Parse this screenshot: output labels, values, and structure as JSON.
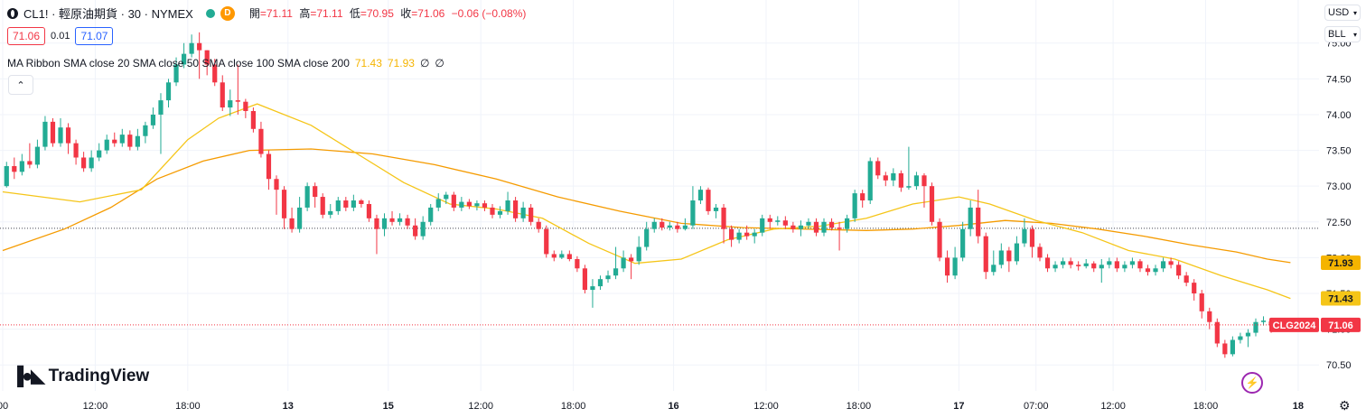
{
  "header": {
    "symbol": "CL1! · 輕原油期貨 · 30 · NYMEX",
    "badge": "D",
    "ohlc": [
      {
        "k": "開",
        "v": "=71.11"
      },
      {
        "k": "高",
        "v": "=71.11"
      },
      {
        "k": "低",
        "v": "=70.95"
      },
      {
        "k": "收",
        "v": "=71.06"
      },
      {
        "k": "",
        "v": "−0.06 (−0.08%)"
      }
    ]
  },
  "quote": {
    "sell": "71.06",
    "spread": "0.01",
    "buy": "71.07"
  },
  "indicator": {
    "label": "MA Ribbon SMA close 20 SMA close 50 SMA close 100 SMA close 200",
    "v1": "71.43",
    "v2": "71.93",
    "v3": "∅",
    "v4": "∅"
  },
  "brand": "TradingView",
  "axis_units": {
    "currency": "USD",
    "unit": "BLL"
  },
  "colors": {
    "up": "#22ab94",
    "down": "#f23645",
    "ma20": "#f5c518",
    "ma50": "#f59b00",
    "purple": "#9c27b0"
  },
  "chart_data": {
    "type": "candlestick",
    "symbol_tag": "CLG2024",
    "y_ticks": [
      "75.00",
      "74.50",
      "74.00",
      "73.50",
      "73.00",
      "72.50",
      "72.00",
      "71.50",
      "71.00",
      "70.50"
    ],
    "y_tick_values": [
      75.0,
      74.5,
      74.0,
      73.5,
      73.0,
      72.5,
      72.0,
      71.5,
      71.0,
      70.5
    ],
    "ylim": [
      70.2,
      75.35
    ],
    "x_ticks": [
      {
        "label": "00",
        "i": 0
      },
      {
        "label": "12:00",
        "i": 12
      },
      {
        "label": "18:00",
        "i": 24
      },
      {
        "label": "13",
        "i": 37
      },
      {
        "label": "15",
        "i": 50
      },
      {
        "label": "12:00",
        "i": 62
      },
      {
        "label": "18:00",
        "i": 74
      },
      {
        "label": "16",
        "i": 87
      },
      {
        "label": "12:00",
        "i": 99
      },
      {
        "label": "18:00",
        "i": 111
      },
      {
        "label": "17",
        "i": 124
      },
      {
        "label": "07:00",
        "i": 134
      },
      {
        "label": "12:00",
        "i": 144
      },
      {
        "label": "18:00",
        "i": 156
      },
      {
        "label": "18",
        "i": 168
      }
    ],
    "n_slots": 170,
    "last_price": "71.06",
    "last_value": 71.06,
    "ma20_label": "71.43",
    "ma20_value": 71.43,
    "ma50_label": "71.93",
    "ma50_value": 71.93,
    "ref_value": 72.41,
    "candles": [
      [
        73.0,
        73.28,
        73.34,
        72.98
      ],
      [
        73.28,
        73.2,
        73.4,
        73.1
      ],
      [
        73.2,
        73.35,
        73.45,
        73.15
      ],
      [
        73.35,
        73.3,
        73.6,
        73.25
      ],
      [
        73.3,
        73.55,
        73.65,
        73.25
      ],
      [
        73.55,
        73.9,
        73.98,
        73.5
      ],
      [
        73.9,
        73.6,
        73.95,
        73.55
      ],
      [
        73.6,
        73.82,
        73.95,
        73.55
      ],
      [
        73.82,
        73.6,
        73.88,
        73.45
      ],
      [
        73.6,
        73.4,
        73.65,
        73.3
      ],
      [
        73.4,
        73.25,
        73.48,
        73.2
      ],
      [
        73.25,
        73.4,
        73.5,
        73.2
      ],
      [
        73.4,
        73.5,
        73.6,
        73.35
      ],
      [
        73.5,
        73.65,
        73.72,
        73.45
      ],
      [
        73.65,
        73.6,
        73.75,
        73.55
      ],
      [
        73.6,
        73.72,
        73.8,
        73.55
      ],
      [
        73.72,
        73.55,
        73.78,
        73.5
      ],
      [
        73.55,
        73.7,
        73.8,
        73.5
      ],
      [
        73.7,
        73.85,
        73.9,
        73.6
      ],
      [
        73.85,
        74.0,
        74.1,
        73.8
      ],
      [
        74.0,
        74.2,
        74.3,
        73.45
      ],
      [
        74.2,
        74.45,
        74.5,
        74.1
      ],
      [
        74.45,
        74.7,
        74.8,
        74.4
      ],
      [
        74.7,
        74.85,
        75.0,
        74.65
      ],
      [
        74.85,
        75.0,
        75.12,
        74.8
      ],
      [
        75.0,
        74.9,
        75.15,
        74.5
      ],
      [
        74.9,
        74.7,
        74.9,
        74.55
      ],
      [
        74.7,
        74.45,
        74.78,
        74.4
      ],
      [
        74.45,
        74.1,
        74.55,
        74.05
      ],
      [
        74.1,
        74.2,
        74.35,
        73.98
      ],
      [
        74.2,
        74.18,
        74.7,
        74.0
      ],
      [
        74.18,
        74.05,
        74.22,
        73.95
      ],
      [
        74.05,
        73.8,
        74.1,
        73.75
      ],
      [
        73.8,
        73.45,
        73.9,
        73.4
      ],
      [
        73.45,
        73.1,
        73.5,
        72.95
      ],
      [
        73.1,
        72.95,
        73.15,
        72.6
      ],
      [
        72.95,
        72.55,
        73.0,
        72.4
      ],
      [
        72.55,
        72.4,
        72.7,
        72.35
      ],
      [
        72.4,
        72.7,
        72.85,
        72.35
      ],
      [
        72.7,
        73.0,
        73.05,
        72.65
      ],
      [
        73.0,
        72.85,
        73.05,
        72.7
      ],
      [
        72.85,
        72.6,
        72.9,
        72.55
      ],
      [
        72.6,
        72.65,
        72.75,
        72.55
      ],
      [
        72.65,
        72.8,
        72.85,
        72.6
      ],
      [
        72.8,
        72.7,
        72.85,
        72.65
      ],
      [
        72.7,
        72.8,
        72.88,
        72.65
      ],
      [
        72.8,
        72.75,
        72.82,
        72.7
      ],
      [
        72.75,
        72.55,
        72.8,
        72.5
      ],
      [
        72.55,
        72.4,
        72.6,
        72.05
      ],
      [
        72.4,
        72.55,
        72.62,
        72.3
      ],
      [
        72.55,
        72.5,
        72.65,
        72.45
      ],
      [
        72.5,
        72.55,
        72.62,
        72.45
      ],
      [
        72.55,
        72.45,
        72.6,
        72.4
      ],
      [
        72.45,
        72.3,
        72.55,
        72.25
      ],
      [
        72.3,
        72.5,
        72.58,
        72.25
      ],
      [
        72.5,
        72.7,
        72.75,
        72.45
      ],
      [
        72.7,
        72.82,
        72.9,
        72.65
      ],
      [
        72.82,
        72.88,
        72.92,
        72.75
      ],
      [
        72.88,
        72.7,
        72.92,
        72.65
      ],
      [
        72.7,
        72.78,
        72.85,
        72.65
      ],
      [
        72.78,
        72.72,
        72.82,
        72.68
      ],
      [
        72.72,
        72.76,
        72.8,
        72.66
      ],
      [
        72.76,
        72.7,
        72.8,
        72.65
      ],
      [
        72.7,
        72.6,
        72.75,
        72.55
      ],
      [
        72.6,
        72.65,
        72.72,
        72.55
      ],
      [
        72.65,
        72.8,
        72.92,
        72.6
      ],
      [
        72.8,
        72.55,
        72.85,
        72.5
      ],
      [
        72.55,
        72.7,
        72.78,
        72.5
      ],
      [
        72.7,
        72.5,
        72.75,
        72.45
      ],
      [
        72.5,
        72.4,
        72.55,
        72.35
      ],
      [
        72.4,
        72.05,
        72.45,
        72.0
      ],
      [
        72.05,
        72.0,
        72.1,
        71.95
      ],
      [
        72.0,
        72.05,
        72.1,
        71.98
      ],
      [
        72.05,
        71.98,
        72.1,
        71.95
      ],
      [
        71.98,
        71.85,
        72.02,
        71.8
      ],
      [
        71.85,
        71.55,
        71.9,
        71.5
      ],
      [
        71.55,
        71.6,
        71.7,
        71.3
      ],
      [
        71.6,
        71.7,
        71.75,
        71.55
      ],
      [
        71.7,
        71.75,
        71.82,
        71.65
      ],
      [
        71.75,
        71.85,
        72.15,
        71.7
      ],
      [
        71.85,
        72.0,
        72.1,
        71.8
      ],
      [
        72.0,
        71.95,
        72.05,
        71.7
      ],
      [
        71.95,
        72.15,
        72.3,
        71.9
      ],
      [
        72.15,
        72.4,
        72.5,
        72.1
      ],
      [
        72.4,
        72.5,
        72.55,
        72.35
      ],
      [
        72.5,
        72.42,
        72.55,
        72.38
      ],
      [
        72.42,
        72.45,
        72.5,
        72.38
      ],
      [
        72.45,
        72.4,
        72.5,
        72.35
      ],
      [
        72.4,
        72.45,
        72.55,
        72.38
      ],
      [
        72.45,
        72.8,
        73.0,
        72.4
      ],
      [
        72.8,
        72.95,
        73.0,
        72.75
      ],
      [
        72.95,
        72.65,
        72.98,
        72.6
      ],
      [
        72.65,
        72.7,
        72.75,
        72.55
      ],
      [
        72.7,
        72.4,
        72.75,
        72.2
      ],
      [
        72.4,
        72.25,
        72.45,
        72.15
      ],
      [
        72.25,
        72.35,
        72.4,
        72.2
      ],
      [
        72.35,
        72.3,
        72.45,
        72.25
      ],
      [
        72.3,
        72.35,
        72.4,
        72.2
      ],
      [
        72.35,
        72.55,
        72.6,
        72.3
      ],
      [
        72.55,
        72.5,
        72.6,
        72.4
      ],
      [
        72.5,
        72.52,
        72.58,
        72.45
      ],
      [
        72.52,
        72.45,
        72.58,
        72.4
      ],
      [
        72.45,
        72.4,
        72.5,
        72.35
      ],
      [
        72.4,
        72.45,
        72.52,
        72.3
      ],
      [
        72.45,
        72.5,
        72.55,
        72.4
      ],
      [
        72.5,
        72.35,
        72.55,
        72.3
      ],
      [
        72.35,
        72.5,
        72.55,
        72.3
      ],
      [
        72.5,
        72.42,
        72.55,
        72.38
      ],
      [
        72.42,
        72.4,
        72.5,
        72.1
      ],
      [
        72.4,
        72.55,
        72.6,
        72.35
      ],
      [
        72.55,
        72.9,
        72.95,
        72.5
      ],
      [
        72.9,
        72.8,
        72.95,
        72.7
      ],
      [
        72.8,
        73.35,
        73.4,
        72.75
      ],
      [
        73.35,
        73.15,
        73.4,
        73.1
      ],
      [
        73.15,
        73.08,
        73.2,
        73.0
      ],
      [
        73.08,
        73.18,
        73.25,
        73.0
      ],
      [
        73.18,
        72.98,
        73.22,
        72.92
      ],
      [
        72.98,
        73.0,
        73.55,
        72.95
      ],
      [
        73.0,
        73.15,
        73.2,
        72.95
      ],
      [
        73.15,
        73.0,
        73.18,
        72.7
      ],
      [
        73.0,
        72.5,
        73.05,
        72.45
      ],
      [
        72.5,
        72.0,
        72.55,
        71.95
      ],
      [
        72.0,
        71.75,
        72.1,
        71.65
      ],
      [
        71.75,
        72.0,
        72.15,
        71.7
      ],
      [
        72.0,
        72.4,
        72.5,
        71.95
      ],
      [
        72.4,
        72.7,
        72.8,
        72.3
      ],
      [
        72.7,
        72.3,
        72.95,
        72.2
      ],
      [
        72.3,
        71.8,
        72.35,
        71.7
      ],
      [
        71.8,
        71.9,
        72.1,
        71.75
      ],
      [
        71.9,
        72.1,
        72.2,
        71.85
      ],
      [
        72.1,
        71.95,
        72.15,
        71.8
      ],
      [
        71.95,
        72.2,
        72.3,
        71.9
      ],
      [
        72.2,
        72.4,
        72.55,
        72.15
      ],
      [
        72.4,
        72.15,
        72.45,
        72.0
      ],
      [
        72.15,
        72.0,
        72.2,
        71.95
      ],
      [
        72.0,
        71.85,
        72.05,
        71.8
      ],
      [
        71.85,
        71.9,
        71.95,
        71.8
      ],
      [
        71.9,
        71.95,
        72.0,
        71.85
      ],
      [
        71.95,
        71.9,
        72.0,
        71.85
      ],
      [
        71.9,
        71.88,
        71.95,
        71.82
      ],
      [
        71.88,
        71.92,
        71.98,
        71.85
      ],
      [
        71.92,
        71.85,
        71.95,
        71.8
      ],
      [
        71.85,
        71.9,
        71.98,
        71.65
      ],
      [
        71.9,
        71.95,
        72.0,
        71.85
      ],
      [
        71.95,
        71.85,
        72.0,
        71.8
      ],
      [
        71.85,
        71.9,
        71.95,
        71.8
      ],
      [
        71.9,
        71.95,
        72.0,
        71.85
      ],
      [
        71.95,
        71.85,
        71.98,
        71.8
      ],
      [
        71.85,
        71.8,
        71.9,
        71.75
      ],
      [
        71.8,
        71.85,
        71.9,
        71.75
      ],
      [
        71.85,
        71.95,
        72.0,
        71.8
      ],
      [
        71.95,
        71.9,
        72.0,
        71.85
      ],
      [
        71.9,
        71.75,
        71.95,
        71.7
      ],
      [
        71.75,
        71.65,
        71.8,
        71.6
      ],
      [
        71.65,
        71.5,
        71.7,
        71.4
      ],
      [
        71.5,
        71.25,
        71.55,
        71.15
      ],
      [
        71.25,
        71.1,
        71.3,
        71.0
      ],
      [
        71.1,
        70.8,
        71.15,
        70.75
      ],
      [
        70.8,
        70.65,
        70.85,
        70.6
      ],
      [
        70.65,
        70.85,
        70.9,
        70.62
      ],
      [
        70.85,
        70.9,
        70.95,
        70.8
      ],
      [
        70.9,
        70.95,
        71.0,
        70.75
      ],
      [
        70.95,
        71.1,
        71.15,
        70.9
      ],
      [
        71.1,
        71.12,
        71.18,
        71.05
      ],
      [
        71.11,
        71.06,
        71.11,
        70.95
      ]
    ],
    "ma20": [
      [
        0,
        72.92
      ],
      [
        10,
        72.78
      ],
      [
        18,
        72.95
      ],
      [
        24,
        73.65
      ],
      [
        28,
        73.95
      ],
      [
        33,
        74.15
      ],
      [
        40,
        73.85
      ],
      [
        46,
        73.45
      ],
      [
        52,
        73.05
      ],
      [
        58,
        72.75
      ],
      [
        64,
        72.68
      ],
      [
        70,
        72.55
      ],
      [
        76,
        72.2
      ],
      [
        82,
        71.92
      ],
      [
        88,
        71.98
      ],
      [
        94,
        72.25
      ],
      [
        100,
        72.4
      ],
      [
        106,
        72.44
      ],
      [
        112,
        72.55
      ],
      [
        118,
        72.75
      ],
      [
        124,
        72.85
      ],
      [
        128,
        72.75
      ],
      [
        134,
        72.52
      ],
      [
        140,
        72.35
      ],
      [
        146,
        72.1
      ],
      [
        152,
        71.98
      ],
      [
        158,
        71.75
      ],
      [
        164,
        71.55
      ],
      [
        167,
        71.43
      ]
    ],
    "ma50": [
      [
        0,
        72.1
      ],
      [
        8,
        72.4
      ],
      [
        14,
        72.7
      ],
      [
        20,
        73.1
      ],
      [
        26,
        73.35
      ],
      [
        32,
        73.5
      ],
      [
        40,
        73.52
      ],
      [
        48,
        73.45
      ],
      [
        56,
        73.3
      ],
      [
        64,
        73.1
      ],
      [
        72,
        72.85
      ],
      [
        80,
        72.65
      ],
      [
        88,
        72.48
      ],
      [
        96,
        72.42
      ],
      [
        104,
        72.4
      ],
      [
        112,
        72.38
      ],
      [
        118,
        72.4
      ],
      [
        124,
        72.45
      ],
      [
        130,
        72.52
      ],
      [
        136,
        72.48
      ],
      [
        142,
        72.4
      ],
      [
        148,
        72.3
      ],
      [
        154,
        72.18
      ],
      [
        160,
        72.08
      ],
      [
        164,
        71.98
      ],
      [
        167,
        71.93
      ]
    ]
  }
}
